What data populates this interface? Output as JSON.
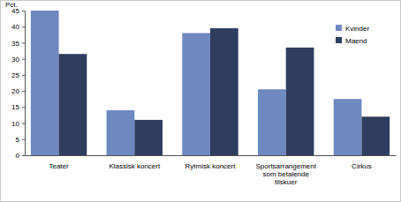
{
  "chart_data": {
    "type": "bar",
    "y_label": "Pct.",
    "categories": [
      "Teater",
      "Klassisk koncert",
      "Rytmisk koncert",
      "Sportsarrangement som betalende tilskuer",
      "Cirkus"
    ],
    "series": [
      {
        "name": "Kvinder",
        "color": "#7088c0",
        "values": [
          45,
          14,
          38,
          20.5,
          17.5
        ]
      },
      {
        "name": "Maend",
        "color": "#2f3e5e",
        "values": [
          31.5,
          11,
          39.5,
          33.5,
          12
        ]
      }
    ],
    "ylim": [
      0,
      45
    ],
    "yticks": [
      0,
      5,
      10,
      15,
      20,
      25,
      30,
      35,
      40,
      45
    ],
    "grid": false,
    "legend": "upper right"
  }
}
